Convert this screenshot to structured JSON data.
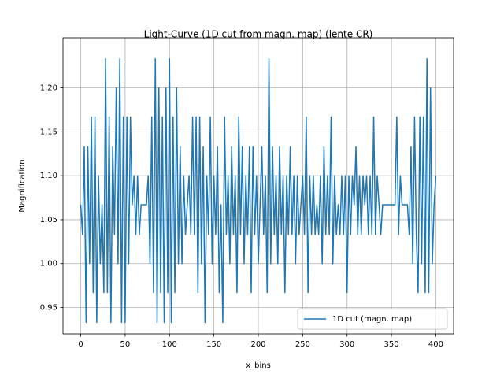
{
  "chart_data": {
    "type": "line",
    "title": "Light-Curve (1D cut from magn. map) (lente CR)",
    "xlabel": "x_bins",
    "ylabel": "Magnification",
    "x": [
      0,
      2,
      4,
      6,
      8,
      10,
      12,
      14,
      16,
      18,
      20,
      22,
      24,
      26,
      28,
      30,
      32,
      34,
      36,
      38,
      40,
      42,
      44,
      46,
      48,
      50,
      52,
      54,
      56,
      58,
      60,
      62,
      64,
      66,
      68,
      70,
      72,
      74,
      76,
      78,
      80,
      82,
      84,
      86,
      88,
      90,
      92,
      94,
      96,
      98,
      100,
      102,
      104,
      106,
      108,
      110,
      112,
      114,
      116,
      118,
      120,
      122,
      124,
      126,
      128,
      130,
      132,
      134,
      136,
      138,
      140,
      142,
      144,
      146,
      148,
      150,
      152,
      154,
      156,
      158,
      160,
      162,
      164,
      166,
      168,
      170,
      172,
      174,
      176,
      178,
      180,
      182,
      184,
      186,
      188,
      190,
      192,
      194,
      196,
      198,
      200,
      202,
      204,
      206,
      208,
      210,
      212,
      214,
      216,
      218,
      220,
      222,
      224,
      226,
      228,
      230,
      232,
      234,
      236,
      238,
      240,
      242,
      244,
      246,
      248,
      250,
      252,
      254,
      256,
      258,
      260,
      262,
      264,
      266,
      268,
      270,
      272,
      274,
      276,
      278,
      280,
      282,
      284,
      286,
      288,
      290,
      292,
      294,
      296,
      298,
      300,
      302,
      304,
      306,
      308,
      310,
      312,
      314,
      316,
      318,
      320,
      322,
      324,
      326,
      328,
      330,
      332,
      334,
      336,
      338,
      340,
      342,
      344,
      346,
      348,
      350,
      352,
      354,
      356,
      358,
      360,
      362,
      364,
      366,
      368,
      370,
      372,
      374,
      376,
      378,
      380,
      382,
      384,
      386,
      388,
      390,
      392,
      394,
      396,
      398,
      400
    ],
    "series": [
      {
        "name": "1D cut (magn. map)",
        "color": "#1f77b4",
        "values": [
          1.067,
          1.033,
          1.133,
          0.933,
          1.133,
          1.0,
          1.167,
          0.967,
          1.167,
          0.933,
          1.1,
          1.0,
          1.067,
          0.967,
          1.233,
          0.967,
          1.167,
          0.933,
          1.133,
          1.033,
          1.2,
          1.0,
          1.233,
          0.933,
          1.167,
          0.933,
          1.167,
          1.0,
          1.167,
          1.067,
          1.1,
          1.033,
          1.1,
          1.033,
          1.067,
          1.067,
          1.067,
          1.067,
          1.1,
          1.0,
          1.167,
          0.967,
          1.233,
          0.933,
          1.2,
          0.967,
          1.167,
          0.933,
          1.2,
          0.967,
          1.233,
          0.933,
          1.167,
          0.967,
          1.2,
          1.0,
          1.133,
          1.0,
          1.1,
          1.033,
          1.067,
          1.1,
          1.033,
          1.167,
          1.033,
          1.167,
          0.967,
          1.167,
          1.0,
          1.133,
          0.933,
          1.1,
          1.033,
          1.167,
          1.0,
          1.1,
          1.033,
          1.133,
          0.967,
          1.067,
          0.933,
          1.167,
          1.033,
          1.1,
          1.0,
          1.133,
          1.033,
          1.1,
          0.967,
          1.167,
          1.033,
          1.133,
          1.0,
          1.1,
          1.033,
          1.133,
          0.967,
          1.133,
          1.033,
          1.1,
          1.0,
          1.067,
          1.133,
          1.033,
          1.1,
          0.967,
          1.233,
          1.0,
          1.133,
          1.033,
          1.1,
          1.0,
          1.133,
          1.033,
          1.1,
          0.967,
          1.1,
          1.033,
          1.133,
          1.033,
          1.1,
          1.0,
          1.1,
          1.033,
          1.067,
          1.1,
          1.033,
          1.167,
          0.967,
          1.1,
          1.033,
          1.1,
          1.033,
          1.067,
          1.033,
          1.1,
          1.0,
          1.133,
          1.033,
          1.1,
          1.033,
          1.167,
          1.0,
          1.1,
          1.033,
          1.067,
          1.033,
          1.1,
          1.033,
          1.1,
          0.967,
          1.1,
          1.033,
          1.1,
          1.067,
          1.133,
          1.033,
          1.1,
          1.033,
          1.1,
          1.067,
          1.1,
          1.033,
          1.1,
          1.033,
          1.167,
          1.033,
          1.1,
          1.067,
          1.033,
          1.067,
          1.067,
          1.067,
          1.067,
          1.067,
          1.067,
          1.067,
          1.067,
          1.167,
          1.033,
          1.1,
          1.067,
          1.067,
          1.067,
          1.067,
          1.033,
          1.133,
          1.0,
          1.167,
          1.033,
          0.967,
          1.167,
          1.0,
          1.167,
          0.967,
          1.233,
          0.967,
          1.2,
          1.0,
          1.067,
          1.1
        ]
      }
    ],
    "xlim": [
      -20,
      420
    ],
    "ylim": [
      0.92,
      1.257
    ],
    "xticks": [
      0,
      50,
      100,
      150,
      200,
      250,
      300,
      350,
      400
    ],
    "yticks": [
      0.95,
      {
        "value": 1,
        "label": "1.00"
      },
      1.05,
      {
        "value": 1.1,
        "label": "1.10"
      },
      1.15,
      {
        "value": 1.2,
        "label": "1.20"
      }
    ],
    "grid": true,
    "legend": "lower right"
  }
}
